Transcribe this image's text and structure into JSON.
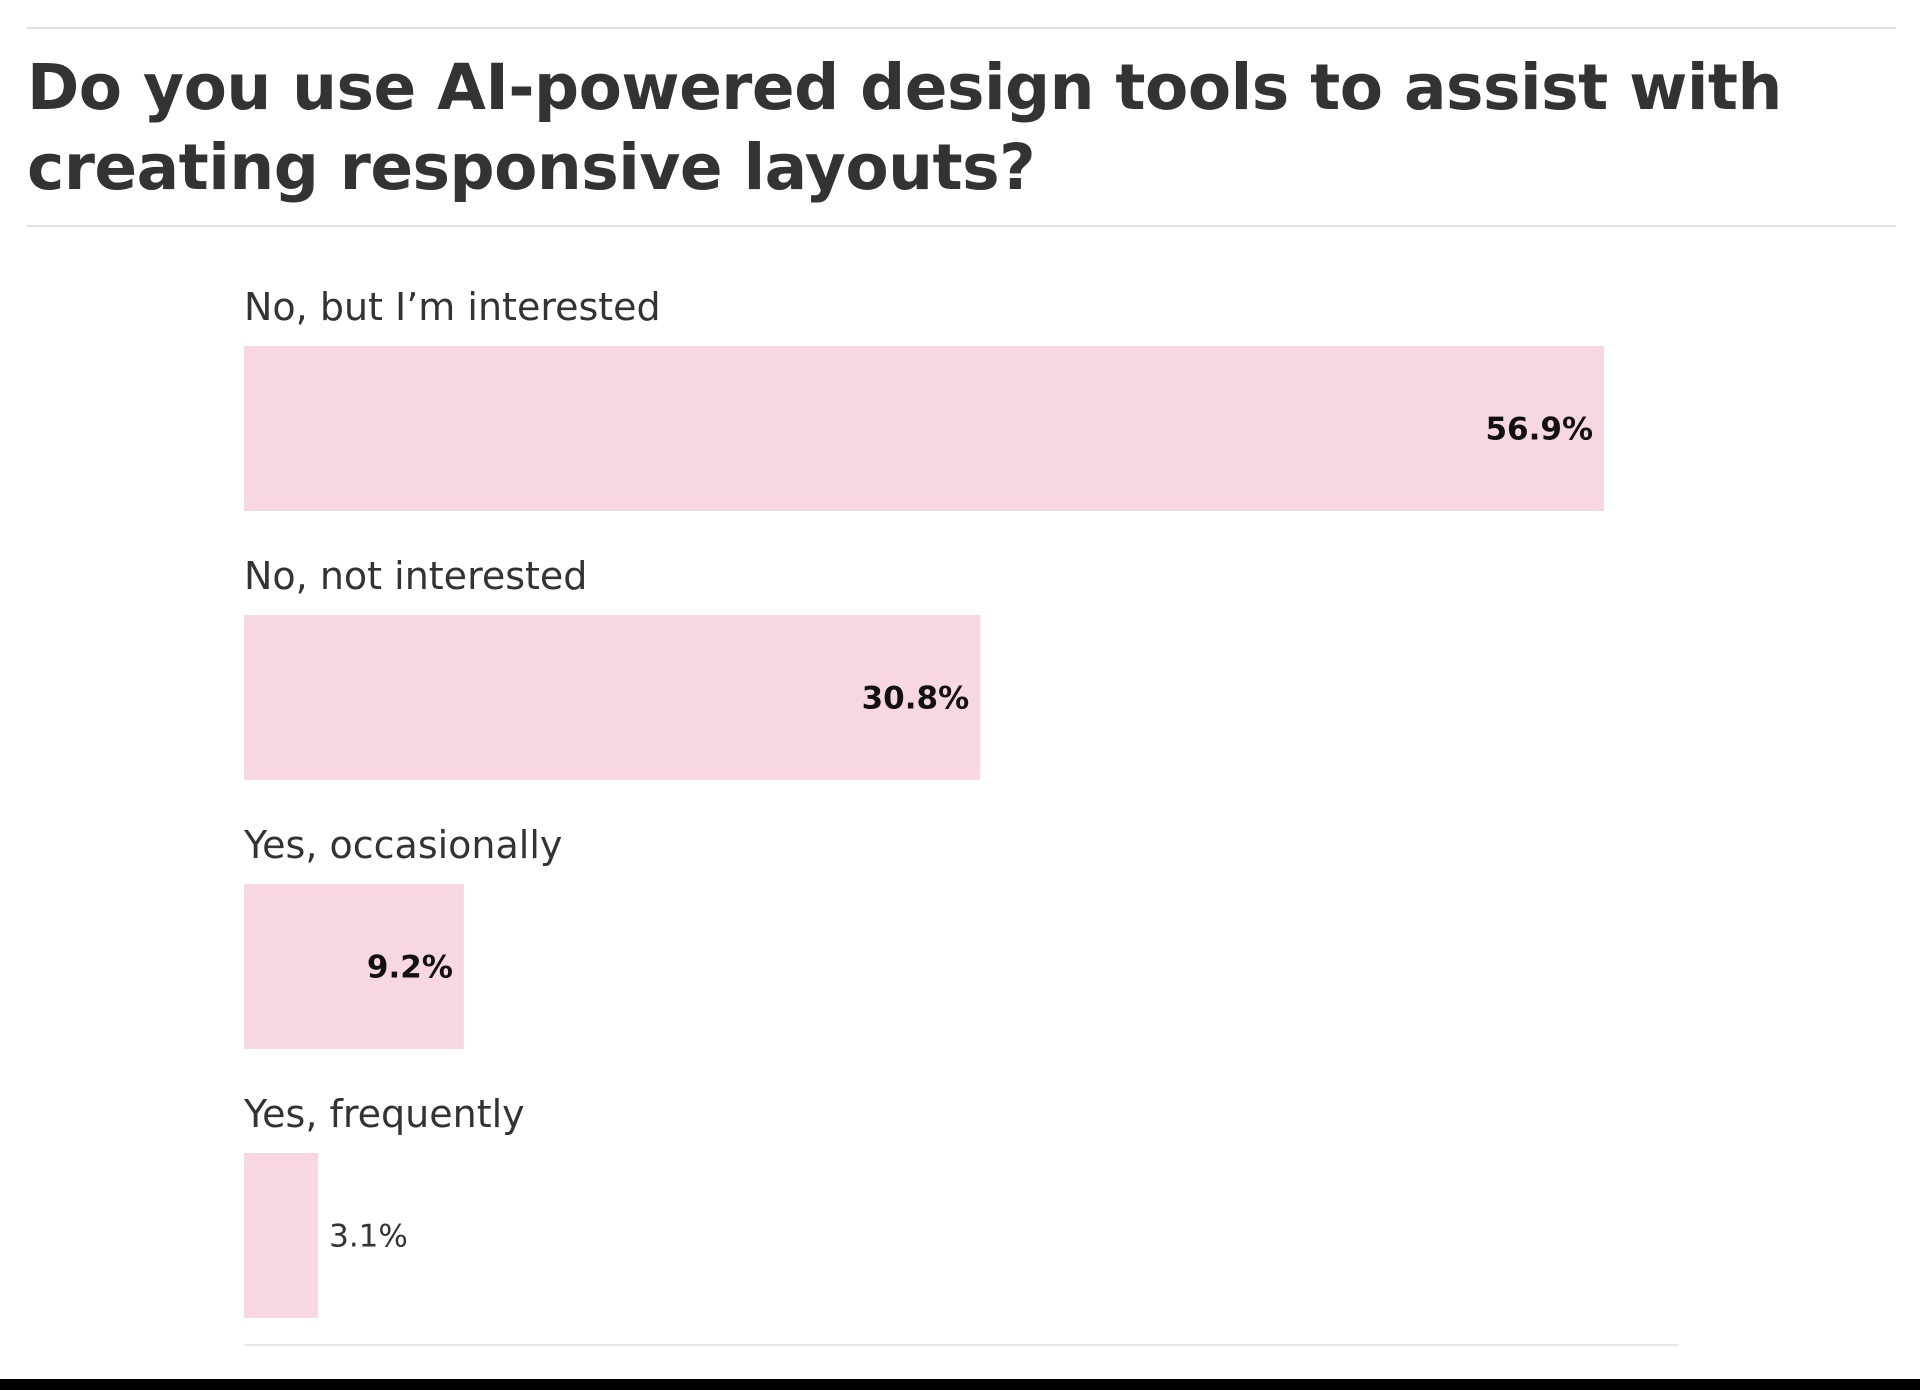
{
  "chart_data": {
    "type": "bar",
    "orientation": "horizontal",
    "title": "Do you use AI-powered design tools to assist with creating responsive layouts?",
    "categories": [
      "No, but I’m interested",
      "No, not interested",
      "Yes, occasionally",
      "Yes, frequently"
    ],
    "values": [
      56.9,
      30.8,
      9.2,
      3.1
    ],
    "value_labels": [
      "56.9%",
      "30.8%",
      "9.2%",
      "3.1%"
    ],
    "unit": "%",
    "xlim": [
      0,
      56.9
    ],
    "grid": false,
    "legend": "none",
    "bar_color": "#f7d8e0"
  }
}
